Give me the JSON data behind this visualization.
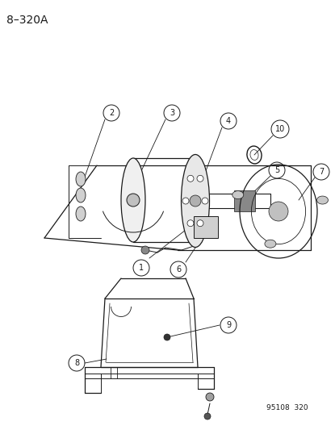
{
  "title_code": "8–320A",
  "footer_code": "95108  320",
  "bg_color": "#ffffff",
  "line_color": "#1a1a1a",
  "label_color": "#1a1a1a",
  "title_fontsize": 10,
  "label_fontsize": 7.5,
  "footer_fontsize": 6.5
}
